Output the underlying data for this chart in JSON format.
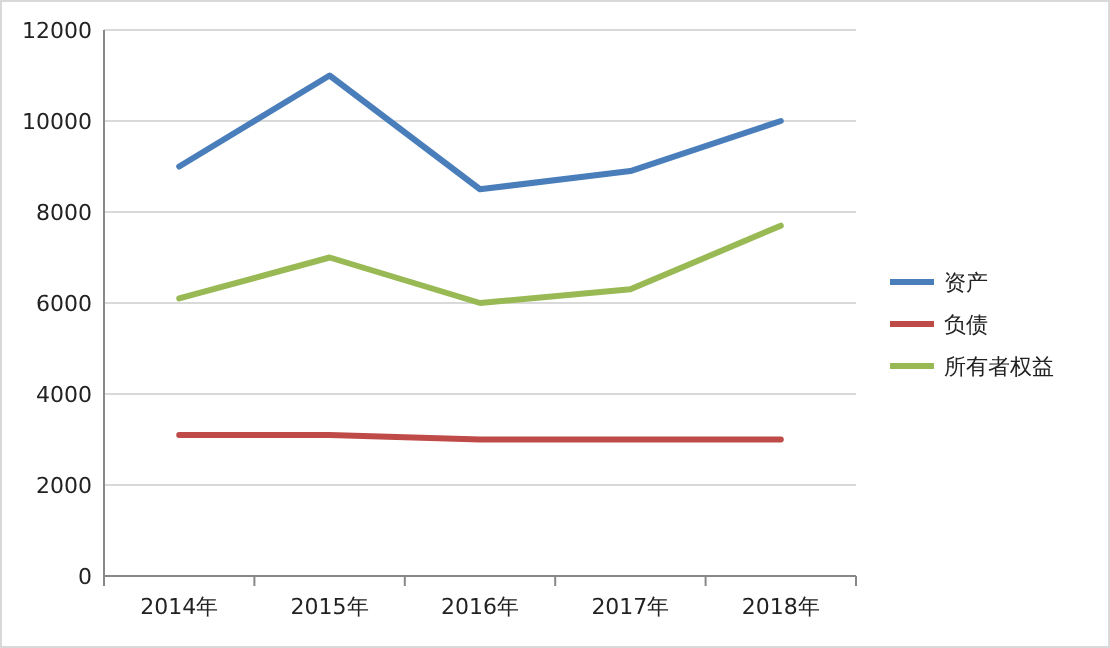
{
  "chart_data": {
    "type": "line",
    "categories": [
      "2014年",
      "2015年",
      "2016年",
      "2017年",
      "2018年"
    ],
    "series": [
      {
        "name": "资产",
        "color": "#4a7ebb",
        "values": [
          9000,
          11000,
          8500,
          8900,
          10000
        ]
      },
      {
        "name": "负债",
        "color": "#be4b48",
        "values": [
          3100,
          3100,
          3000,
          3000,
          3000
        ]
      },
      {
        "name": "所有者权益",
        "color": "#98b954",
        "values": [
          6100,
          7000,
          6000,
          6300,
          7700
        ]
      }
    ],
    "ylim": [
      0,
      12000
    ],
    "yticks": [
      0,
      2000,
      4000,
      6000,
      8000,
      10000,
      12000
    ],
    "grid": "y",
    "legend": "right",
    "marker": "none",
    "line_style": "solid"
  }
}
